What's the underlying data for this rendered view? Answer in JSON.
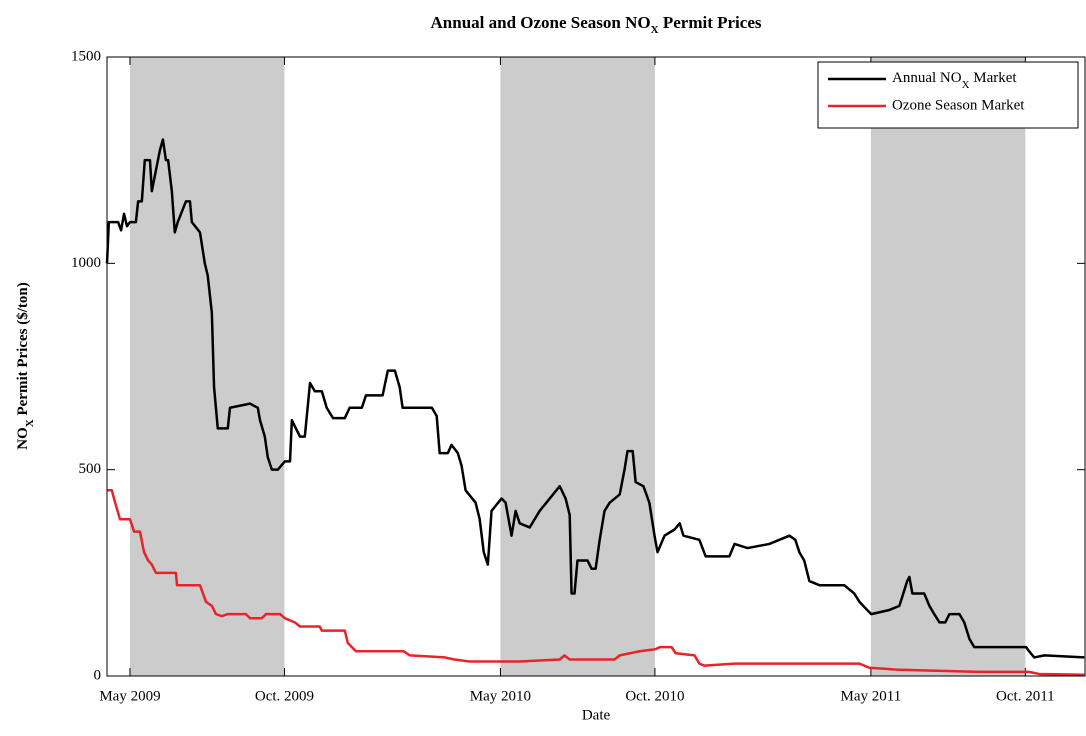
{
  "chart_data": {
    "type": "line",
    "title": [
      "Annual and Ozone Season NO",
      "X",
      " Permit Prices"
    ],
    "xlabel": "Date",
    "ylabel": [
      "NO",
      "X",
      " Permit Prices ($/ton)"
    ],
    "xlim": [
      2009.271,
      2011.911
    ],
    "ylim": [
      0,
      1500
    ],
    "yticks": [
      0,
      500,
      1000,
      1500
    ],
    "xticks": [
      {
        "value": 2009.333,
        "label": "May 2009"
      },
      {
        "value": 2009.75,
        "label": "Oct. 2009"
      },
      {
        "value": 2010.333,
        "label": "May 2010"
      },
      {
        "value": 2010.75,
        "label": "Oct. 2010"
      },
      {
        "value": 2011.333,
        "label": "May 2011"
      },
      {
        "value": 2011.75,
        "label": "Oct. 2011"
      }
    ],
    "shaded_spans": [
      [
        2009.333,
        2009.75
      ],
      [
        2010.333,
        2010.75
      ],
      [
        2011.333,
        2011.75
      ]
    ],
    "shade_color": "#cccccc",
    "legend": "upper right",
    "series": [
      {
        "name": [
          "Annual NO",
          "X",
          " Market"
        ],
        "color": "#000000",
        "x": [
          2009.271,
          2009.276,
          2009.301,
          2009.309,
          2009.317,
          2009.325,
          2009.333,
          2009.349,
          2009.355,
          2009.365,
          2009.373,
          2009.387,
          2009.392,
          2009.403,
          2009.414,
          2009.422,
          2009.43,
          2009.436,
          2009.446,
          2009.454,
          2009.462,
          2009.484,
          2009.495,
          2009.5,
          2009.522,
          2009.535,
          2009.543,
          2009.554,
          2009.56,
          2009.57,
          2009.597,
          2009.603,
          2009.657,
          2009.678,
          2009.684,
          2009.697,
          2009.705,
          2009.716,
          2009.732,
          2009.751,
          2009.765,
          2009.77,
          2009.781,
          2009.792,
          2009.805,
          2009.819,
          2009.832,
          2009.851,
          2009.864,
          2009.881,
          2009.913,
          2009.926,
          2009.959,
          2009.97,
          2010.015,
          2010.029,
          2010.048,
          2010.061,
          2010.069,
          2010.148,
          2010.161,
          2010.169,
          2010.191,
          2010.201,
          2010.218,
          2010.228,
          2010.239,
          2010.266,
          2010.277,
          2010.288,
          2010.299,
          2010.309,
          2010.336,
          2010.347,
          2010.363,
          2010.374,
          2010.385,
          2010.412,
          2010.439,
          2010.466,
          2010.493,
          2010.509,
          2010.52,
          2010.525,
          2010.533,
          2010.541,
          2010.568,
          2010.579,
          2010.59,
          2010.601,
          2010.614,
          2010.628,
          2010.655,
          2010.668,
          2010.676,
          2010.69,
          2010.698,
          2010.719,
          2010.735,
          2010.749,
          2010.757,
          2010.776,
          2010.803,
          2010.817,
          2010.827,
          2010.87,
          2010.887,
          2010.951,
          2010.965,
          2011.0,
          2011.059,
          2011.113,
          2011.129,
          2011.14,
          2011.153,
          2011.167,
          2011.194,
          2011.261,
          2011.288,
          2011.302,
          2011.323,
          2011.334,
          2011.383,
          2011.41,
          2011.431,
          2011.437,
          2011.445,
          2011.477,
          2011.491,
          2011.504,
          2011.518,
          2011.534,
          2011.545,
          2011.572,
          2011.585,
          2011.599,
          2011.612,
          2011.752,
          2011.76,
          2011.774,
          2011.801,
          2011.909
        ],
        "values": [
          1000,
          1100,
          1100,
          1080,
          1120,
          1090,
          1100,
          1100,
          1150,
          1150,
          1250,
          1250,
          1175,
          1225,
          1275,
          1300,
          1250,
          1250,
          1175,
          1075,
          1100,
          1150,
          1150,
          1100,
          1075,
          1000,
          970,
          880,
          700,
          600,
          600,
          650,
          660,
          650,
          620,
          580,
          530,
          500,
          500,
          520,
          520,
          620,
          600,
          580,
          580,
          710,
          690,
          690,
          650,
          625,
          625,
          650,
          650,
          680,
          680,
          740,
          740,
          700,
          650,
          650,
          630,
          540,
          540,
          560,
          540,
          510,
          450,
          420,
          380,
          300,
          270,
          400,
          430,
          420,
          340,
          400,
          370,
          360,
          400,
          430,
          460,
          430,
          390,
          200,
          200,
          280,
          280,
          260,
          260,
          330,
          400,
          420,
          440,
          500,
          545,
          545,
          470,
          460,
          420,
          340,
          300,
          340,
          355,
          370,
          340,
          330,
          290,
          290,
          320,
          310,
          320,
          340,
          330,
          300,
          280,
          230,
          220,
          220,
          200,
          180,
          160,
          150,
          160,
          170,
          230,
          240,
          200,
          200,
          170,
          150,
          130,
          130,
          150,
          150,
          130,
          90,
          70,
          70,
          60,
          45,
          50,
          45
        ]
      },
      {
        "name": "Ozone Season Market",
        "color": "#e8232a",
        "x": [
          2009.271,
          2009.284,
          2009.293,
          2009.306,
          2009.333,
          2009.344,
          2009.36,
          2009.371,
          2009.382,
          2009.392,
          2009.403,
          2009.457,
          2009.46,
          2009.522,
          2009.538,
          2009.554,
          2009.565,
          2009.581,
          2009.597,
          2009.646,
          2009.657,
          2009.689,
          2009.7,
          2009.738,
          2009.751,
          2009.778,
          2009.792,
          2009.845,
          2009.851,
          2009.913,
          2009.921,
          2009.943,
          2010.072,
          2010.088,
          2010.183,
          2010.209,
          2010.25,
          2010.385,
          2010.493,
          2010.506,
          2010.52,
          2010.641,
          2010.655,
          2010.709,
          2010.752,
          2010.763,
          2010.795,
          2010.806,
          2010.857,
          2010.87,
          2010.884,
          2010.965,
          2011.302,
          2011.329,
          2011.41,
          2011.625,
          2011.76,
          2011.787,
          2011.909
        ],
        "values": [
          450,
          450,
          420,
          380,
          380,
          350,
          350,
          300,
          280,
          270,
          250,
          250,
          220,
          220,
          180,
          170,
          150,
          145,
          150,
          150,
          140,
          140,
          150,
          150,
          140,
          130,
          120,
          120,
          110,
          110,
          80,
          60,
          60,
          50,
          45,
          40,
          35,
          35,
          40,
          50,
          40,
          40,
          50,
          60,
          65,
          70,
          70,
          55,
          50,
          30,
          25,
          30,
          30,
          20,
          15,
          10,
          10,
          5,
          3
        ]
      }
    ]
  }
}
